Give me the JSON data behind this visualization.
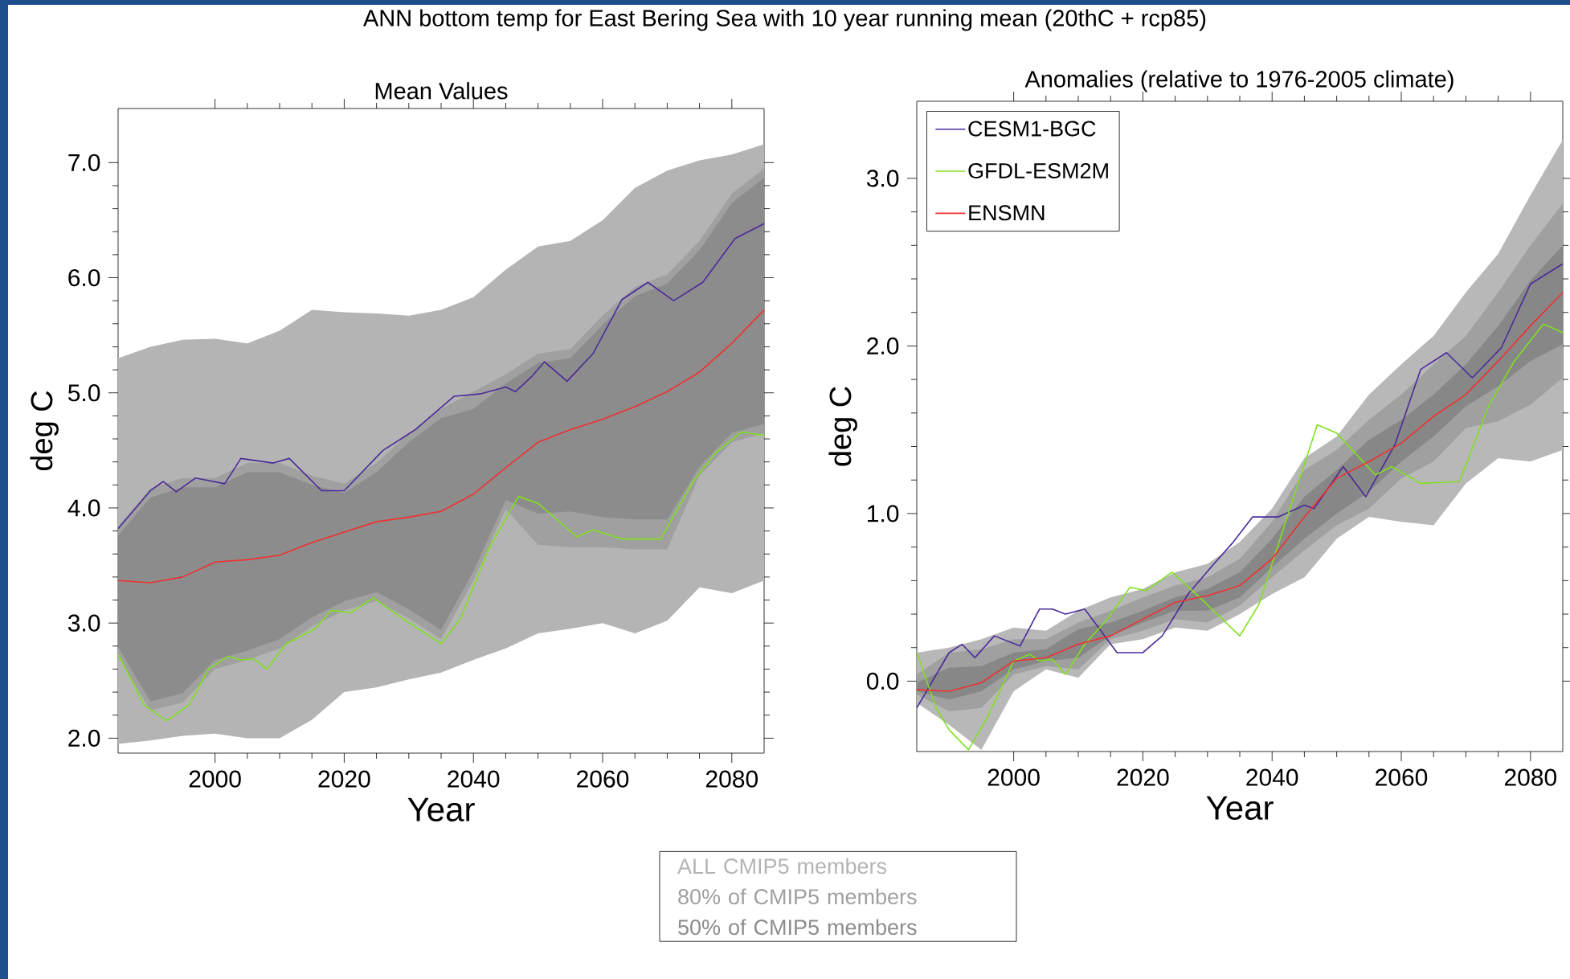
{
  "chart_data": [
    {
      "type": "line",
      "title": "Mean Values",
      "xlabel": "Year",
      "ylabel": "deg C",
      "annotations": [
        "ANN bottom temp for East Bering Sea with 10 year running mean (20thC + rcp85)"
      ],
      "x": [
        1985,
        1990,
        1995,
        2000,
        2005,
        2010,
        2015,
        2020,
        2025,
        2030,
        2035,
        2040,
        2045,
        2050,
        2055,
        2060,
        2065,
        2070,
        2075,
        2080,
        2085
      ],
      "xlim": [
        1985,
        2085
      ],
      "ylim": [
        1.87,
        7.47
      ],
      "xticks": [
        2000,
        2020,
        2040,
        2060,
        2080
      ],
      "yticks": [
        {
          "value": 2,
          "label": "2.0"
        },
        {
          "value": 3,
          "label": "3.0"
        },
        {
          "value": 4,
          "label": "4.0"
        },
        {
          "value": 5,
          "label": "5.0"
        },
        {
          "value": 6,
          "label": "6.0"
        },
        {
          "value": 7,
          "label": "7.0"
        }
      ],
      "legend": "bottom",
      "series": [
        {
          "name": "ALL CMIP5 members",
          "color": "#b4b4b4",
          "values": [
            null,
            null,
            null,
            null,
            null,
            null,
            null,
            null,
            null,
            null,
            null,
            null,
            null,
            null,
            null,
            null,
            null,
            null,
            null,
            null,
            null
          ],
          "upper": [
            5.3,
            5.4,
            5.46,
            5.47,
            5.43,
            5.54,
            5.72,
            5.7,
            5.69,
            5.67,
            5.72,
            5.83,
            6.07,
            6.27,
            6.32,
            6.5,
            6.78,
            6.93,
            7.02,
            7.07,
            7.16
          ],
          "lower": [
            1.95,
            1.98,
            2.02,
            2.04,
            2.0,
            2.0,
            2.16,
            2.4,
            2.44,
            2.51,
            2.57,
            2.68,
            2.78,
            2.91,
            2.95,
            3.0,
            2.91,
            3.02,
            3.31,
            3.26,
            3.37
          ]
        },
        {
          "name": "80% of CMIP5 members",
          "color": "#a0a0a0",
          "values": [
            null,
            null,
            null,
            null,
            null,
            null,
            null,
            null,
            null,
            null,
            null,
            null,
            null,
            null,
            null,
            null,
            null,
            null,
            null,
            null,
            null
          ],
          "upper": [
            3.84,
            4.17,
            4.26,
            4.26,
            4.39,
            4.39,
            4.28,
            4.21,
            4.39,
            4.65,
            4.86,
            5.01,
            5.16,
            5.34,
            5.38,
            5.67,
            5.92,
            6.03,
            6.32,
            6.73,
            6.95
          ],
          "lower": [
            2.71,
            2.24,
            2.31,
            2.6,
            2.68,
            2.78,
            2.97,
            3.11,
            3.19,
            3.04,
            2.86,
            3.37,
            3.99,
            3.68,
            3.66,
            3.66,
            3.64,
            3.64,
            4.28,
            4.57,
            4.65
          ]
        },
        {
          "name": "50% of CMIP5 members",
          "color": "#8c8c8c",
          "values": [
            null,
            null,
            null,
            null,
            null,
            null,
            null,
            null,
            null,
            null,
            null,
            null,
            null,
            null,
            null,
            null,
            null,
            null,
            null,
            null,
            null
          ],
          "upper": [
            3.76,
            4.09,
            4.18,
            4.18,
            4.31,
            4.31,
            4.2,
            4.13,
            4.31,
            4.57,
            4.78,
            4.86,
            5.08,
            5.26,
            5.3,
            5.59,
            5.84,
            5.95,
            6.24,
            6.65,
            6.87
          ],
          "lower": [
            2.79,
            2.32,
            2.39,
            2.68,
            2.76,
            2.86,
            3.05,
            3.19,
            3.27,
            3.12,
            2.94,
            3.45,
            4.07,
            3.95,
            3.97,
            3.92,
            3.9,
            3.9,
            4.36,
            4.65,
            4.73
          ]
        },
        {
          "color": "#4b2a9a",
          "x": [
            1985,
            1990,
            1992,
            1994,
            1997,
            2001.5,
            2004,
            2009,
            2011.5,
            2016.5,
            2020,
            2026,
            2031,
            2037,
            2041,
            2045,
            2046.5,
            2049,
            2051,
            2054.5,
            2058.5,
            2063,
            2067,
            2071,
            2075.5,
            2080.5,
            2085
          ],
          "values": [
            3.82,
            4.15,
            4.23,
            4.14,
            4.26,
            4.21,
            4.43,
            4.39,
            4.43,
            4.15,
            4.15,
            4.5,
            4.68,
            4.97,
            4.99,
            5.05,
            5.01,
            5.14,
            5.27,
            5.1,
            5.34,
            5.81,
            5.96,
            5.8,
            5.96,
            6.34,
            6.47
          ]
        },
        {
          "color": "#80e020",
          "x": [
            1985,
            1989,
            1992.5,
            1996,
            1999,
            2002,
            2004,
            2006,
            2008,
            2011,
            2015.5,
            2018,
            2021,
            2024.5,
            2028.5,
            2035,
            2038,
            2042.5,
            2047,
            2050,
            2056,
            2058.5,
            2063,
            2069,
            2074,
            2077.5,
            2081.5,
            2085
          ],
          "values": [
            2.73,
            2.29,
            2.15,
            2.29,
            2.6,
            2.71,
            2.68,
            2.69,
            2.6,
            2.82,
            2.95,
            3.11,
            3.09,
            3.22,
            3.06,
            2.82,
            3.04,
            3.66,
            4.1,
            4.04,
            3.75,
            3.81,
            3.73,
            3.73,
            4.23,
            4.48,
            4.66,
            4.63
          ]
        },
        {
          "color": "#f03030",
          "values": [
            3.37,
            3.35,
            3.4,
            3.53,
            3.55,
            3.59,
            3.7,
            3.79,
            3.88,
            3.92,
            3.97,
            4.12,
            4.35,
            4.57,
            4.68,
            4.77,
            4.88,
            5.01,
            5.18,
            5.43,
            5.72
          ]
        }
      ]
    },
    {
      "type": "line",
      "title": "Anomalies (relative to 1976-2005 climate)",
      "xlabel": "Year",
      "ylabel": "deg C",
      "x": [
        1985,
        1990,
        1995,
        2000,
        2005,
        2010,
        2015,
        2020,
        2025,
        2030,
        2035,
        2040,
        2045,
        2050,
        2055,
        2060,
        2065,
        2070,
        2075,
        2080,
        2085
      ],
      "xlim": [
        1985,
        2085
      ],
      "ylim": [
        -0.42,
        3.46
      ],
      "xticks": [
        2000,
        2020,
        2040,
        2060,
        2080
      ],
      "yticks": [
        {
          "value": 0,
          "label": "0.0"
        },
        {
          "value": 1,
          "label": "1.0"
        },
        {
          "value": 2,
          "label": "2.0"
        },
        {
          "value": 3,
          "label": "3.0"
        }
      ],
      "legend": "top left",
      "series": [
        {
          "color": "#b8b8b8",
          "values": [
            null,
            null,
            null,
            null,
            null,
            null,
            null,
            null,
            null,
            null,
            null,
            null,
            null,
            null,
            null,
            null,
            null,
            null,
            null,
            null,
            null
          ],
          "upper": [
            0.17,
            0.2,
            0.25,
            0.32,
            0.3,
            0.42,
            0.5,
            0.55,
            0.65,
            0.7,
            0.83,
            1.03,
            1.33,
            1.46,
            1.71,
            1.89,
            2.06,
            2.32,
            2.55,
            2.9,
            3.23
          ],
          "lower": [
            -0.13,
            -0.26,
            -0.41,
            -0.06,
            0.07,
            0.02,
            0.22,
            0.25,
            0.32,
            0.3,
            0.4,
            0.52,
            0.62,
            0.85,
            0.98,
            0.95,
            0.93,
            1.18,
            1.33,
            1.31,
            1.38
          ]
        },
        {
          "color": "#a0a0a0",
          "values": [
            null,
            null,
            null,
            null,
            null,
            null,
            null,
            null,
            null,
            null,
            null,
            null,
            null,
            null,
            null,
            null,
            null,
            null,
            null,
            null,
            null
          ],
          "upper": [
            0.04,
            0.17,
            0.19,
            0.25,
            0.25,
            0.35,
            0.42,
            0.5,
            0.57,
            0.62,
            0.73,
            0.95,
            1.26,
            1.38,
            1.56,
            1.71,
            1.89,
            2.06,
            2.32,
            2.6,
            2.85
          ],
          "lower": [
            -0.08,
            -0.18,
            -0.16,
            0.04,
            0.09,
            0.07,
            0.25,
            0.3,
            0.37,
            0.35,
            0.45,
            0.62,
            0.78,
            0.93,
            1.03,
            1.21,
            1.31,
            1.51,
            1.55,
            1.65,
            1.81
          ]
        },
        {
          "color": "#878787",
          "values": [
            null,
            null,
            null,
            null,
            null,
            null,
            null,
            null,
            null,
            null,
            null,
            null,
            null,
            null,
            null,
            null,
            null,
            null,
            null,
            null,
            null
          ],
          "upper": [
            -0.01,
            0.08,
            0.09,
            0.17,
            0.19,
            0.31,
            0.35,
            0.42,
            0.5,
            0.55,
            0.65,
            0.85,
            1.1,
            1.26,
            1.44,
            1.56,
            1.71,
            1.89,
            2.12,
            2.39,
            2.6
          ],
          "lower": [
            -0.06,
            -0.11,
            -0.06,
            0.07,
            0.12,
            0.14,
            0.27,
            0.35,
            0.42,
            0.42,
            0.5,
            0.68,
            0.85,
            1.0,
            1.13,
            1.31,
            1.46,
            1.64,
            1.76,
            1.91,
            2.01
          ]
        },
        {
          "name": "CESM1-BGC",
          "color": "#4b2a9a",
          "x": [
            1985,
            1990,
            1992,
            1994,
            1997,
            2001,
            2004,
            2006,
            2008,
            2011,
            2016,
            2018,
            2020,
            2023,
            2027,
            2031,
            2034,
            2037,
            2041,
            2045,
            2046.5,
            2051,
            2054.5,
            2059,
            2063,
            2067,
            2071,
            2075.5,
            2080,
            2085
          ],
          "values": [
            -0.16,
            0.17,
            0.22,
            0.14,
            0.27,
            0.21,
            0.43,
            0.43,
            0.4,
            0.43,
            0.17,
            0.17,
            0.17,
            0.27,
            0.52,
            0.7,
            0.83,
            0.98,
            0.98,
            1.05,
            1.03,
            1.28,
            1.1,
            1.41,
            1.86,
            1.96,
            1.81,
            1.99,
            2.37,
            2.49
          ]
        },
        {
          "name": "GFDL-ESM2M",
          "color": "#80e020",
          "x": [
            1985,
            1988,
            1990,
            1993,
            1996,
            2000,
            2002.5,
            2004,
            2006,
            2008,
            2011,
            2014.5,
            2018,
            2020.5,
            2024.5,
            2028.5,
            2035,
            2038,
            2042.5,
            2047,
            2050,
            2056,
            2058.5,
            2063,
            2069,
            2073.5,
            2077.5,
            2082,
            2085
          ],
          "values": [
            0.17,
            -0.16,
            -0.29,
            -0.41,
            -0.21,
            0.12,
            0.16,
            0.12,
            0.13,
            0.04,
            0.22,
            0.37,
            0.56,
            0.54,
            0.65,
            0.51,
            0.27,
            0.46,
            1.0,
            1.53,
            1.48,
            1.23,
            1.28,
            1.18,
            1.19,
            1.64,
            1.91,
            2.13,
            2.08
          ]
        },
        {
          "name": "ENSMN",
          "color": "#f03030",
          "values": [
            -0.05,
            -0.06,
            -0.01,
            0.12,
            0.14,
            0.22,
            0.27,
            0.37,
            0.47,
            0.51,
            0.57,
            0.73,
            0.98,
            1.21,
            1.31,
            1.42,
            1.58,
            1.71,
            1.91,
            2.12,
            2.32
          ]
        }
      ]
    }
  ]
}
